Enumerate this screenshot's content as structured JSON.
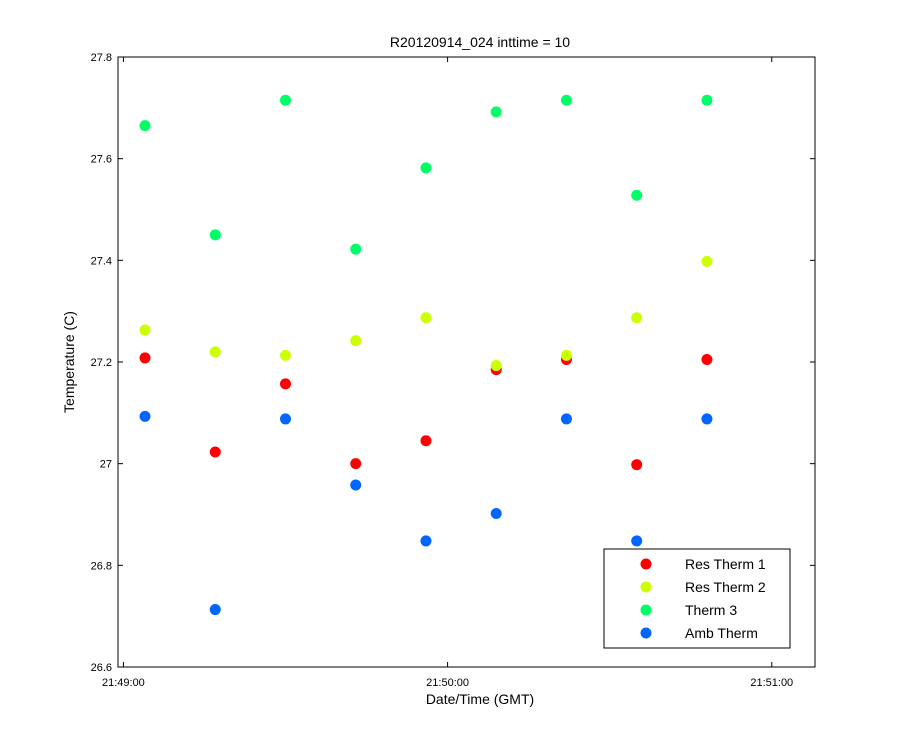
{
  "chart_data": {
    "type": "scatter",
    "title": "R20120914_024 inttime = 10",
    "xlabel": "Date/Time (GMT)",
    "ylabel": "Temperature (C)",
    "xlim": [
      "21:48:59",
      "21:51:08"
    ],
    "ylim": [
      26.6,
      27.8
    ],
    "x_ticks": [
      "21:49:00",
      "21:50:00",
      "21:51:00"
    ],
    "y_ticks": [
      "26.6",
      "26.8",
      "27",
      "27.2",
      "27.4",
      "27.6",
      "27.8"
    ],
    "legend_position": "bottom-right",
    "grid": false,
    "x": [
      "21:49:04",
      "21:49:17",
      "21:49:30",
      "21:49:43",
      "21:49:56",
      "21:50:09",
      "21:50:22",
      "21:50:35",
      "21:50:48"
    ],
    "series": [
      {
        "name": "Res Therm 1",
        "color": "#ff0000",
        "values": [
          27.208,
          27.023,
          27.157,
          27.0,
          27.045,
          27.185,
          27.205,
          26.998,
          27.205
        ]
      },
      {
        "name": "Res Therm 2",
        "color": "#ccff00",
        "values": [
          27.263,
          27.22,
          27.213,
          27.242,
          27.287,
          27.193,
          27.213,
          27.287,
          27.398
        ]
      },
      {
        "name": "Therm 3",
        "color": "#00ff66",
        "values": [
          27.665,
          27.45,
          27.715,
          27.422,
          27.582,
          27.692,
          27.715,
          27.528,
          27.715
        ]
      },
      {
        "name": "Amb Therm",
        "color": "#0066ff",
        "values": [
          27.093,
          26.713,
          27.088,
          26.958,
          26.848,
          26.902,
          27.088,
          26.848,
          27.088
        ]
      }
    ]
  }
}
